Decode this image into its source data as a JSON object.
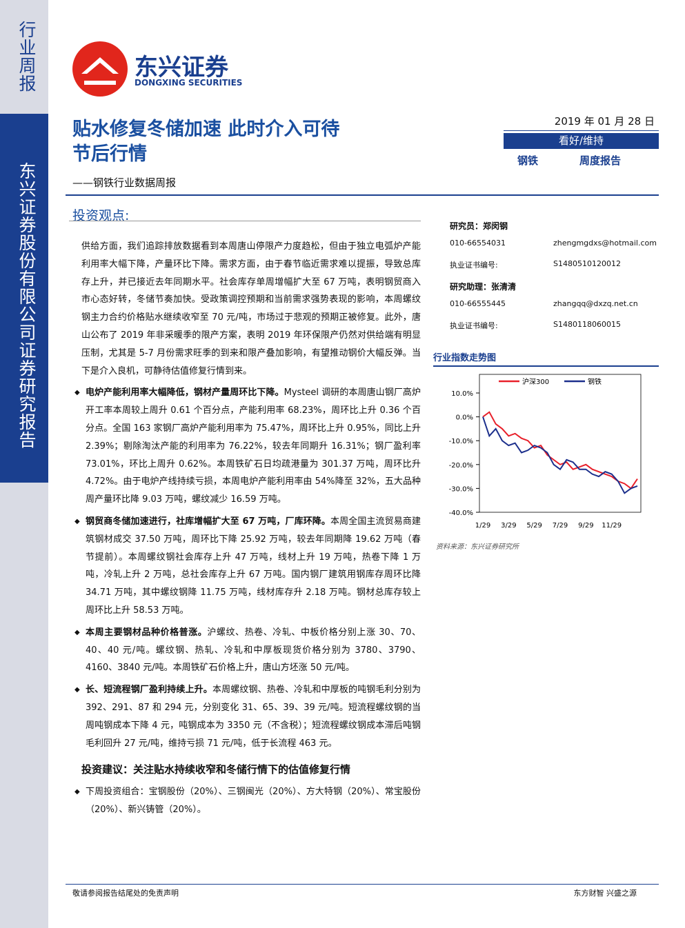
{
  "sidebar": {
    "type": "行业周报",
    "company": "东兴证券股份有限公司证券研究报告"
  },
  "logo": {
    "cn": "东兴证券",
    "en": "DONGXING SECURITIES"
  },
  "header": {
    "title1": "贴水修复冬储加速  此时介入可待",
    "title2": "节后行情",
    "subtitle": "——钢铁行业数据周报",
    "date": "2019 年 01 月 28 日",
    "rating": "看好/维持",
    "industry": "钢铁",
    "report_type": "周度报告"
  },
  "section": {
    "heading": "投资观点:",
    "intro": "供给方面，我们追踪排放数据看到本周唐山停限产力度趋松，但由于独立电弧炉产能利用率大幅下降，产量环比下降。需求方面，由于春节临近需求难以提振，导致总库存上升，并已接近去年同期水平。社会库存单周增幅扩大至 67 万吨，表明钢贸商入市心态好转，冬储节奏加快。受政策调控预期和当前需求强势表现的影响，本周螺纹钢主力合约价格贴水继续收窄至 70 元/吨，市场过于悲观的预期正被修复。此外，唐山公布了 2019 年非采暖季的限产方案，表明 2019 年环保限产仍然对供给端有明显压制，尤其是 5-7 月份需求旺季的到来和限产叠加影响，有望推动钢价大幅反弹。当下是介入良机，可静待估值修复行情到来。",
    "bullets": [
      {
        "lead": "电炉产能利用率大幅降低，钢材产量周环比下降。",
        "text": "Mysteel 调研的本周唐山钢厂高炉开工率本周较上周升 0.61 个百分点，产能利用率 68.23%，周环比上升 0.36 个百分点。全国 163 家钢厂高炉产能利用率为 75.47%，周环比上升 0.95%，同比上升 2.39%；剔除淘汰产能的利用率为 76.22%，较去年同期升 16.31%；钢厂盈利率 73.01%，环比上周升 0.62%。本周铁矿石日均疏港量为 301.37 万吨，周环比升 4.72%。由于电炉产线持续亏损，本周电炉产能利用率由 54%降至 32%，五大品种周产量环比降 9.03 万吨，螺纹减少 16.59 万吨。"
      },
      {
        "lead": "钢贸商冬储加速进行，社库增幅扩大至 67 万吨，厂库环降。",
        "text": "本周全国主流贸易商建筑钢材成交 37.50 万吨，周环比下降 25.92 万吨，较去年同期降 19.62 万吨（春节提前）。本周螺纹钢社会库存上升 47 万吨，线材上升 19 万吨，热卷下降 1 万吨，冷轧上升 2 万吨，总社会库存上升 67 万吨。国内钢厂建筑用钢库存周环比降 34.71 万吨，其中螺纹钢降 11.75 万吨，线材库存升 2.18 万吨。钢材总库存较上周环比上升 58.53 万吨。"
      },
      {
        "lead": "本周主要钢材品种价格普涨。",
        "text": "沪螺纹、热卷、冷轧、中板价格分别上涨 30、70、40、40 元/吨。螺纹钢、热轧、冷轧和中厚板现货价格分别为 3780、3790、4160、3840 元/吨。本周铁矿石价格上升，唐山方坯涨 50 元/吨。"
      },
      {
        "lead": "长、短流程钢厂盈利持续上升。",
        "text": "本周螺纹钢、热卷、冷轧和中厚板的吨钢毛利分别为 392、291、87 和 294 元，分别变化 31、65、39、39 元/吨。短流程螺纹钢的当周吨钢成本下降 4 元，吨钢成本为 3350 元（不含税）；短流程螺纹钢成本滞后吨钢毛利回升 27 元/吨，维持亏损 71 元/吨，低于长流程 463 元。"
      }
    ],
    "advice_heading": "投资建议：关注贴水持续收窄和冬储行情下的估值修复行情",
    "advice": "下周投资组合：宝钢股份（20%）、三钢闽光（20%）、方大特钢（20%）、常宝股份（20%）、新兴铸管（20%）。"
  },
  "analysts": [
    {
      "role": "研究员：郑闵钢",
      "phone": "010-66554031",
      "email": "zhengmgdxs@hotmail.com",
      "cert_label": "执业证书编号:",
      "cert": "S1480510120012"
    },
    {
      "role": "研究助理：张清清",
      "phone": "010-66555445",
      "email": "zhangqq@dxzq.net.cn",
      "cert_label": "执业证书编号:",
      "cert": "S1480118060015"
    }
  ],
  "chart_data": {
    "type": "line",
    "title": "行业指数走势图",
    "source": "资料来源：东兴证券研究所",
    "categories": [
      "1/29",
      null,
      null,
      null,
      "3/29",
      null,
      null,
      null,
      "5/29",
      null,
      null,
      null,
      "7/29",
      null,
      null,
      null,
      "9/29",
      null,
      null,
      null,
      "11/29",
      null,
      null,
      null,
      null
    ],
    "series": [
      {
        "name": "沪深300",
        "color": "#e8202a",
        "values": [
          0,
          2,
          -3,
          -5,
          -8,
          -7,
          -9,
          -10,
          -13,
          -12,
          -16,
          -18,
          -20,
          -19,
          -22,
          -21,
          -20,
          -22,
          -23,
          -24,
          -25,
          -27,
          -28,
          -30,
          -26
        ]
      },
      {
        "name": "钢铁",
        "color": "#1c2f8c",
        "values": [
          0,
          -8,
          -5,
          -10,
          -12,
          -11,
          -15,
          -14,
          -12,
          -13,
          -15,
          -20,
          -22,
          -18,
          -19,
          -22,
          -22,
          -24,
          -25,
          -23,
          -24,
          -27,
          -32,
          -30,
          -29
        ]
      }
    ],
    "ylim": [
      -40,
      10
    ],
    "yticks": [
      {
        "value": 10,
        "label": "10.0%"
      },
      {
        "value": 0,
        "label": "0.0%"
      },
      {
        "value": -10,
        "label": "-10.0%"
      },
      {
        "value": -20,
        "label": "-20.0%"
      },
      {
        "value": -30,
        "label": "-30.0%"
      },
      {
        "value": -40,
        "label": "-40.0%"
      }
    ],
    "legend": "top"
  },
  "footer": {
    "left": "敬请参阅报告结尾处的免责声明",
    "right": "东方财智  兴盛之源"
  }
}
